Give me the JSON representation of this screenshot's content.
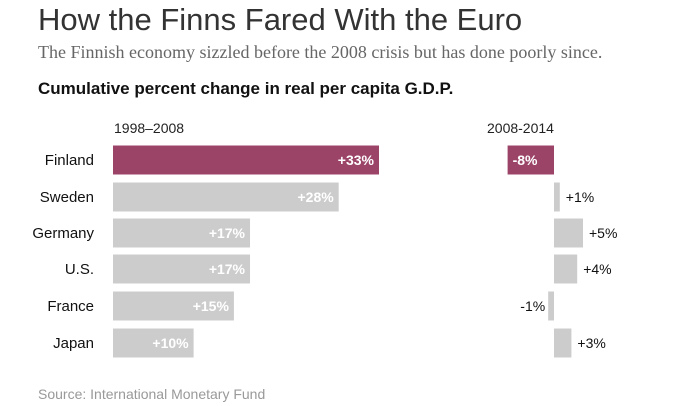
{
  "header": {
    "title": "How the Finns Fared With the Euro",
    "subtitle": "The Finnish economy sizzled before the 2008 crisis but has done poorly since.",
    "heading": "Cumulative percent change in real per capita G.D.P."
  },
  "footer": {
    "source": "Source: International Monetary Fund"
  },
  "colors": {
    "highlight": "#9c4468",
    "bar": "#cccccc",
    "label_dark": "#111111",
    "label_light": "#ffffff"
  },
  "chart_data": {
    "type": "bar",
    "title": "Cumulative percent change in real per capita G.D.P.",
    "categories": [
      "Finland",
      "Sweden",
      "Germany",
      "U.S.",
      "France",
      "Japan"
    ],
    "highlight": "Finland",
    "series": [
      {
        "name": "1998–2008",
        "values": [
          33,
          28,
          17,
          17,
          15,
          10
        ],
        "labels": [
          "+33%",
          "+28%",
          "+17%",
          "+17%",
          "+15%",
          "+10%"
        ]
      },
      {
        "name": "2008-2014",
        "values": [
          -8,
          1,
          5,
          4,
          -1,
          3
        ],
        "labels": [
          "-8%",
          "+1%",
          "+5%",
          "+4%",
          "-1%",
          "+3%"
        ]
      }
    ],
    "unit": "%"
  }
}
